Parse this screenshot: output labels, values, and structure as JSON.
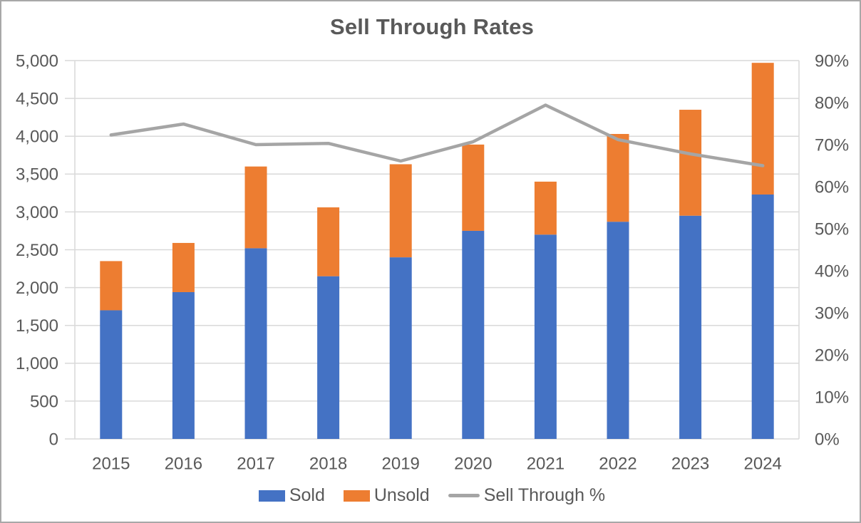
{
  "chart_data": {
    "type": "combo",
    "title": "Sell Through Rates",
    "categories": [
      "2015",
      "2016",
      "2017",
      "2018",
      "2019",
      "2020",
      "2021",
      "2022",
      "2023",
      "2024"
    ],
    "series": [
      {
        "name": "Sold",
        "type": "bar",
        "axis": "left",
        "color": "#4472C4",
        "values": [
          1700,
          1940,
          2520,
          2150,
          2400,
          2750,
          2700,
          2870,
          2950,
          3230
        ]
      },
      {
        "name": "Unsold",
        "type": "bar",
        "axis": "left",
        "color": "#ED7D31",
        "values": [
          650,
          650,
          1080,
          910,
          1230,
          1140,
          700,
          1160,
          1400,
          1740
        ]
      },
      {
        "name": "Sell Through %",
        "type": "line",
        "axis": "right",
        "color": "#A5A5A5",
        "values": [
          72.3,
          74.9,
          70.0,
          70.3,
          66.1,
          70.7,
          79.4,
          71.2,
          67.8,
          65.0
        ]
      }
    ],
    "stacked_totals": [
      2350,
      2590,
      3600,
      3060,
      3630,
      3890,
      3400,
      4030,
      4350,
      4970
    ],
    "left_axis": {
      "min": 0,
      "max": 5000,
      "step": 500,
      "tick_labels": [
        "0",
        "500",
        "1,000",
        "1,500",
        "2,000",
        "2,500",
        "3,000",
        "3,500",
        "4,000",
        "4,500",
        "5,000"
      ]
    },
    "right_axis": {
      "min": 0,
      "max": 90,
      "step": 10,
      "tick_labels": [
        "0%",
        "10%",
        "20%",
        "30%",
        "40%",
        "50%",
        "60%",
        "70%",
        "80%",
        "90%"
      ]
    },
    "grid": true,
    "legend_position": "bottom",
    "colors": {
      "gridline": "#D9D9D9",
      "axis_text": "#595959",
      "title_text": "#595959",
      "frame_border": "#A8A8A8",
      "background": "#FFFFFF"
    }
  }
}
